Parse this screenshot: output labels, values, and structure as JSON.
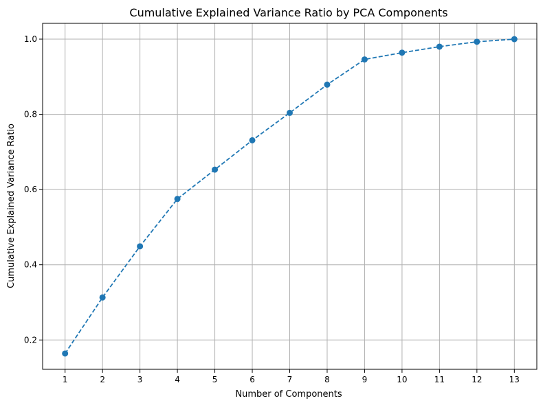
{
  "chart_data": {
    "type": "line",
    "title": "Cumulative Explained Variance Ratio by PCA Components",
    "xlabel": "Number of Components",
    "ylabel": "Cumulative Explained Variance Ratio",
    "x": [
      1,
      2,
      3,
      4,
      5,
      6,
      7,
      8,
      9,
      10,
      11,
      12,
      13
    ],
    "y": [
      0.164,
      0.313,
      0.449,
      0.575,
      0.653,
      0.731,
      0.804,
      0.879,
      0.946,
      0.964,
      0.98,
      0.993,
      1.0
    ],
    "x_ticks": [
      "1",
      "2",
      "3",
      "4",
      "5",
      "6",
      "7",
      "8",
      "9",
      "10",
      "11",
      "12",
      "13"
    ],
    "y_ticks": [
      "0.2",
      "0.4",
      "0.6",
      "0.8",
      "1.0"
    ],
    "y_tick_values": [
      0.2,
      0.4,
      0.6,
      0.8,
      1.0
    ],
    "xlim": [
      0.4,
      13.6
    ],
    "ylim": [
      0.122,
      1.042
    ],
    "grid": true,
    "line_style": "dashed",
    "marker": "circle",
    "color": "#1f77b4"
  }
}
